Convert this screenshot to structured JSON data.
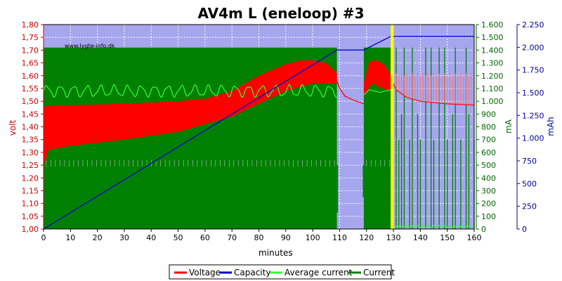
{
  "chart_data": {
    "type": "line",
    "title": "AV4m L (eneloop) #3",
    "watermark": "www.lygte-info.dk",
    "xlabel": "minutes",
    "ylabel_left": "volt",
    "ylabel_mid": "mA",
    "ylabel_right": "mAh",
    "xlim": [
      0,
      160
    ],
    "ylim_volt": [
      1.0,
      1.8
    ],
    "ylim_ma": [
      0,
      1600
    ],
    "ylim_mah": [
      0,
      2250
    ],
    "x_ticks": [
      "0",
      "10",
      "20",
      "30",
      "40",
      "50",
      "60",
      "70",
      "80",
      "90",
      "100",
      "110",
      "120",
      "130",
      "140",
      "150",
      "160"
    ],
    "volt_ticks": [
      "1,00",
      "1,05",
      "1,10",
      "1,15",
      "1,20",
      "1,25",
      "1,30",
      "1,35",
      "1,40",
      "1,45",
      "1,50",
      "1,55",
      "1,60",
      "1,65",
      "1,70",
      "1,75",
      "1,80"
    ],
    "ma_ticks": [
      "0",
      "100",
      "200",
      "300",
      "400",
      "500",
      "600",
      "700",
      "800",
      "900",
      "1.000",
      "1.100",
      "1.200",
      "1.300",
      "1.400",
      "1.500",
      "1.600"
    ],
    "mah_ticks": [
      "0",
      "250",
      "500",
      "750",
      "1.000",
      "1.250",
      "1.500",
      "1.750",
      "2.000",
      "2.250"
    ],
    "colors": {
      "plot_bg": "#a6a6ee",
      "voltage": "#ff0000",
      "capacity": "#0000cc",
      "average_current": "#33ff33",
      "current": "#008000",
      "marker": "#ffff00",
      "volt_axis": "#cc0000",
      "ma_axis": "#006600",
      "mah_axis": "#000099"
    },
    "marker_x": 129.5,
    "series": [
      {
        "name": "Voltage",
        "unit": "V",
        "band_low": [
          [
            0,
            1.25
          ],
          [
            2,
            1.31
          ],
          [
            10,
            1.325
          ],
          [
            30,
            1.35
          ],
          [
            50,
            1.38
          ],
          [
            70,
            1.44
          ],
          [
            80,
            1.49
          ],
          [
            90,
            1.54
          ],
          [
            100,
            1.57
          ],
          [
            105,
            1.57
          ],
          [
            108,
            1.57
          ],
          [
            109,
            1.57
          ]
        ],
        "band_high": [
          [
            0,
            1.48
          ],
          [
            10,
            1.485
          ],
          [
            30,
            1.49
          ],
          [
            50,
            1.5
          ],
          [
            60,
            1.51
          ],
          [
            70,
            1.54
          ],
          [
            80,
            1.6
          ],
          [
            90,
            1.645
          ],
          [
            96,
            1.66
          ],
          [
            100,
            1.66
          ],
          [
            105,
            1.65
          ],
          [
            109,
            1.61
          ]
        ],
        "rest1": [
          [
            109,
            1.58
          ],
          [
            110,
            1.55
          ],
          [
            112,
            1.52
          ],
          [
            115,
            1.505
          ],
          [
            119,
            1.49
          ]
        ],
        "pulse2_low": [
          [
            119,
            1.52
          ],
          [
            122,
            1.57
          ],
          [
            126,
            1.55
          ],
          [
            129,
            1.54
          ]
        ],
        "pulse2_high": [
          [
            119,
            1.57
          ],
          [
            121,
            1.655
          ],
          [
            124,
            1.66
          ],
          [
            127,
            1.64
          ],
          [
            129,
            1.6
          ]
        ],
        "tail": [
          [
            129.5,
            1.58
          ],
          [
            131,
            1.545
          ],
          [
            135,
            1.515
          ],
          [
            140,
            1.5
          ],
          [
            150,
            1.49
          ],
          [
            160,
            1.485
          ]
        ],
        "spikes_x": [
          131,
          132,
          133,
          134,
          135,
          136,
          137,
          138,
          139,
          140,
          141,
          142,
          143,
          144,
          145,
          146,
          147,
          148,
          149,
          150,
          151,
          152,
          153,
          154,
          155,
          156,
          157,
          158,
          159
        ],
        "spike_top": 1.61
      },
      {
        "name": "Capacity",
        "unit": "mAh",
        "points": [
          [
            0,
            0
          ],
          [
            109,
            1970
          ],
          [
            119,
            1970
          ],
          [
            129,
            2120
          ],
          [
            129.5,
            2120
          ],
          [
            160,
            2120
          ]
        ]
      },
      {
        "name": "Average current",
        "unit": "mA",
        "base": 1080,
        "amplitude": 40,
        "period_min": 5,
        "x_range": [
          0,
          109
        ],
        "points2": [
          [
            119,
            1050
          ],
          [
            121,
            1090
          ],
          [
            125,
            1070
          ],
          [
            129,
            1090
          ]
        ]
      },
      {
        "name": "Current",
        "unit": "mA",
        "on_level": 1420,
        "off_level": 500,
        "on_segments": [
          [
            0,
            109
          ],
          [
            119,
            129
          ]
        ],
        "spikes_x": [
          131,
          132,
          133,
          134,
          136,
          137,
          139,
          140,
          142,
          144,
          145,
          147,
          149,
          150,
          152,
          153,
          155,
          157,
          158,
          160
        ],
        "spike_top": 1420
      }
    ],
    "legend": {
      "placement": "bottom-center",
      "entries": [
        "Voltage",
        "Capacity",
        "Average current",
        "Current"
      ]
    }
  }
}
